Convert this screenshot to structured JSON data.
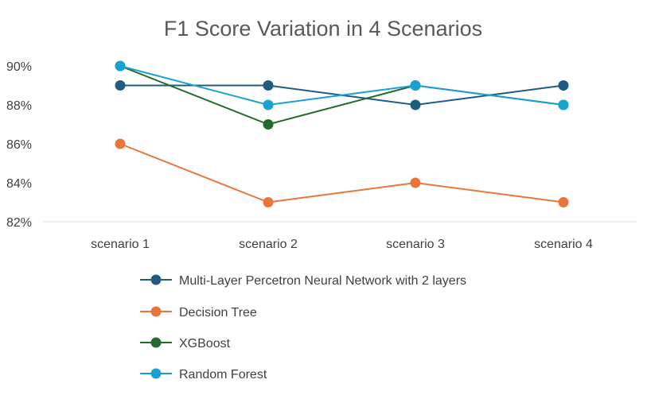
{
  "chart_data": {
    "type": "line",
    "title": "F1 Score Variation in 4 Scenarios",
    "xlabel": "",
    "ylabel": "",
    "categories": [
      "scenario 1",
      "scenario 2",
      "scenario 3",
      "scenario 4"
    ],
    "ylim": [
      82,
      90
    ],
    "yticks": [
      82,
      84,
      86,
      88,
      90
    ],
    "ytick_labels": [
      "82%",
      "84%",
      "86%",
      "88%",
      "90%"
    ],
    "grid": false,
    "legend_position": "bottom",
    "series": [
      {
        "name": "Multi-Layer Percetron Neural Network with 2 layers",
        "color": "#1f5c80",
        "values": [
          89,
          89,
          88,
          89
        ]
      },
      {
        "name": "Decision Tree",
        "color": "#e8763a",
        "values": [
          86,
          83,
          84,
          83
        ]
      },
      {
        "name": "XGBoost",
        "color": "#236b2b",
        "values": [
          90,
          87,
          89,
          88
        ]
      },
      {
        "name": "Random Forest",
        "color": "#1aa1d4",
        "values": [
          90,
          88,
          89,
          88
        ]
      }
    ]
  }
}
